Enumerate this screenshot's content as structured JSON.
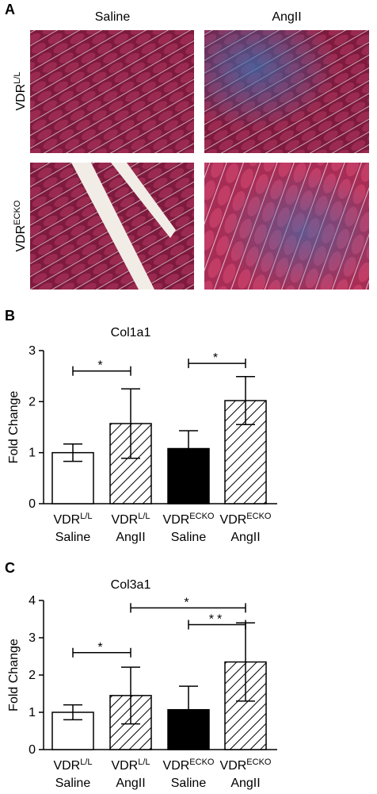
{
  "figure": {
    "panel_label": "A",
    "columns": [
      "Saline",
      "AngII"
    ],
    "rows": [
      {
        "base": "VDR",
        "sup": "L/L"
      },
      {
        "base": "VDR",
        "sup": "ECKO"
      }
    ]
  },
  "chart_data": [
    {
      "type": "bar",
      "panel_label": "B",
      "title": "Col1a1",
      "y_label": "Fold Change",
      "categories": [
        {
          "base": "VDR",
          "sup": "L/L",
          "line2": "Saline"
        },
        {
          "base": "VDR",
          "sup": "L/L",
          "line2": "AngII"
        },
        {
          "base": "VDR",
          "sup": "ECKO",
          "line2": "Saline"
        },
        {
          "base": "VDR",
          "sup": "ECKO",
          "line2": "AngII"
        }
      ],
      "values": [
        1.0,
        1.57,
        1.08,
        2.02
      ],
      "errors": [
        0.17,
        0.68,
        0.35,
        0.47
      ],
      "fills": [
        "white",
        "hatch",
        "black",
        "hatch"
      ],
      "ylim": [
        0,
        3
      ],
      "yticks": [
        0,
        1,
        2,
        3
      ],
      "significance": [
        {
          "from": 0,
          "to": 1,
          "y": 2.6,
          "label": "*"
        },
        {
          "from": 2,
          "to": 3,
          "y": 2.75,
          "label": "*"
        }
      ]
    },
    {
      "type": "bar",
      "panel_label": "C",
      "title": "Col3a1",
      "y_label": "Fold Change",
      "categories": [
        {
          "base": "VDR",
          "sup": "L/L",
          "line2": "Saline"
        },
        {
          "base": "VDR",
          "sup": "L/L",
          "line2": "AngII"
        },
        {
          "base": "VDR",
          "sup": "ECKO",
          "line2": "Saline"
        },
        {
          "base": "VDR",
          "sup": "ECKO",
          "line2": "AngII"
        }
      ],
      "values": [
        1.0,
        1.45,
        1.07,
        2.35
      ],
      "errors": [
        0.2,
        0.76,
        0.63,
        1.05
      ],
      "fills": [
        "white",
        "hatch",
        "black",
        "hatch"
      ],
      "ylim": [
        0,
        4
      ],
      "yticks": [
        0,
        1,
        2,
        3,
        4
      ],
      "significance": [
        {
          "from": 0,
          "to": 1,
          "y": 2.6,
          "label": "*"
        },
        {
          "from": 1,
          "to": 3,
          "y": 3.8,
          "label": "*"
        },
        {
          "from": 2,
          "to": 3,
          "y": 3.35,
          "label": "**"
        }
      ]
    }
  ]
}
